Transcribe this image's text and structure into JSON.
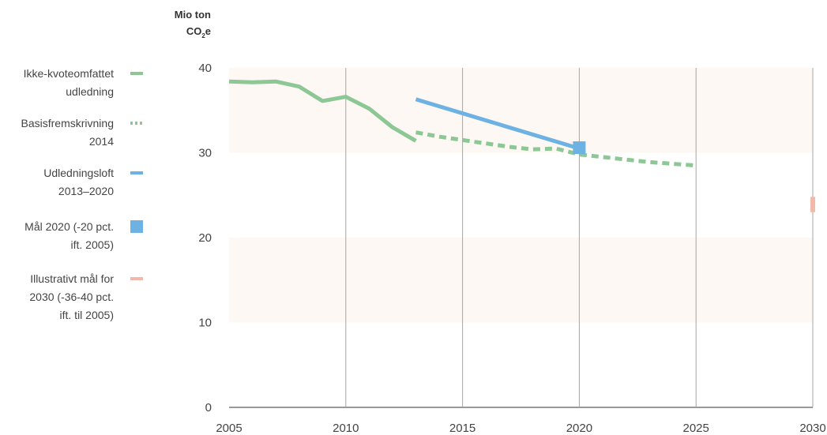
{
  "chart_data": {
    "type": "line",
    "ylabel_line1": "Mio ton",
    "ylabel_line2": "CO",
    "ylabel_sub": "2",
    "ylabel_tail": "e",
    "xlim": [
      2005,
      2030
    ],
    "ylim": [
      0,
      40
    ],
    "x_ticks": [
      "2005",
      "2010",
      "2015",
      "2020",
      "2025",
      "2030"
    ],
    "y_ticks": [
      "0",
      "10",
      "20",
      "30",
      "40"
    ],
    "bands": [
      [
        30,
        40
      ],
      [
        10,
        20
      ]
    ],
    "series": [
      {
        "name": "Ikke-kvoteomfattet udledning",
        "style": "solid",
        "color": "#8dc796",
        "x": [
          2005,
          2006,
          2007,
          2008,
          2009,
          2010,
          2011,
          2012,
          2013
        ],
        "y": [
          38.4,
          38.3,
          38.4,
          37.8,
          36.1,
          36.6,
          35.2,
          33.0,
          31.4
        ]
      },
      {
        "name": "Basisfremskrivning 2014",
        "style": "dashed",
        "color": "#8dc796",
        "x": [
          2013,
          2014,
          2015,
          2016,
          2017,
          2018,
          2019,
          2020,
          2021,
          2022,
          2023,
          2024,
          2025
        ],
        "y": [
          32.4,
          31.9,
          31.5,
          31.1,
          30.7,
          30.4,
          30.5,
          29.8,
          29.5,
          29.2,
          28.9,
          28.7,
          28.5
        ]
      },
      {
        "name": "Udledningsloft 2013–2020",
        "style": "solid",
        "color": "#6eb2e4",
        "x": [
          2013,
          2020
        ],
        "y": [
          36.3,
          30.5
        ]
      }
    ],
    "markers": [
      {
        "name": "Mål 2020 (-20 pct. ift. 2005)",
        "shape": "square",
        "color": "#6eb2e4",
        "x": 2020,
        "y": 30.6
      },
      {
        "name": "Illustrativt mål for 2030 (-36-40 pct. ift. til 2005)",
        "shape": "range",
        "color": "#f2b8aa",
        "x": 2030,
        "y": [
          23.0,
          24.8
        ]
      }
    ],
    "legend": [
      {
        "label": "Ikke-kvoteomfattet\nudledning",
        "swatch": "line",
        "color": "#8dc796"
      },
      {
        "label": "Basisfremskrivning\n2014",
        "swatch": "dashed",
        "color": "#8dc796"
      },
      {
        "label": "Udledningsloft\n2013–2020",
        "swatch": "line",
        "color": "#6eb2e4"
      },
      {
        "label": "Mål 2020 (-20 pct.\nift. 2005)",
        "swatch": "square",
        "color": "#6eb2e4"
      },
      {
        "label": "Illustrativt mål for\n2030 (-36-40 pct.\nift. til 2005)",
        "swatch": "line",
        "color": "#f2b8aa"
      }
    ],
    "legend_position": "left",
    "colors": {
      "band": "#fdf8f3",
      "grid": "#a6a6a6",
      "axis": "#999999"
    }
  }
}
